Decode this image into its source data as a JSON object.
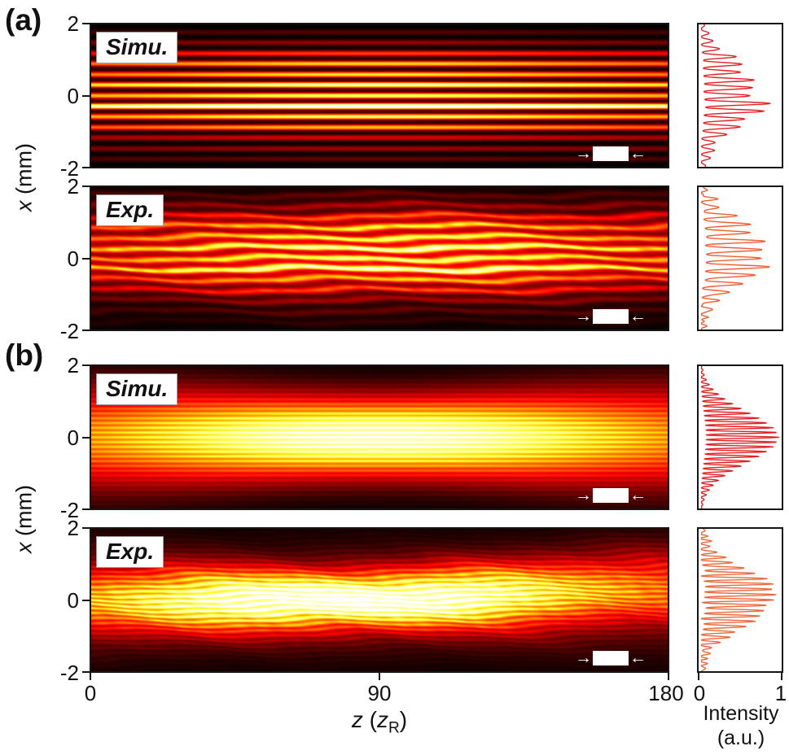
{
  "labels": {
    "panel_a": "(a)",
    "panel_b": "(b)"
  },
  "axes": {
    "y_var": "x",
    "y_unit": " (mm)",
    "y_ticks": [
      "2",
      "0",
      "-2"
    ],
    "x_ticks": [
      "0",
      "90",
      "180"
    ],
    "z_var": "z",
    "z_open": " (",
    "z_sub_var": "z",
    "z_sub": "R",
    "z_close": ")",
    "int_ticks": [
      "0",
      "1"
    ],
    "intensity_line1": "Intensity",
    "intensity_line2": "(a.u.)"
  },
  "decor": {
    "arrow_right": "→",
    "arrow_left": "←"
  },
  "colors": {
    "axis": "#151515",
    "background": "#ffffff"
  },
  "chart_data": [
    {
      "id": "a-simu",
      "type": "heatmap",
      "tag": "Simu.",
      "model": "modes",
      "x_range": [
        0,
        180
      ],
      "y_range": [
        -2,
        2
      ],
      "intensity_range": [
        0,
        1
      ],
      "colormap": "hot",
      "xlabel": "z (zR)",
      "ylabel": "x (mm)",
      "fringe_period_mm": 0.3,
      "fringe_contrast": 0.9,
      "envelope_center_mm": 0.0,
      "envelope_width_mm": 1.25,
      "z_center": 90,
      "z_width": 75,
      "z_base": 0.7,
      "mod_strength": 0.45,
      "brightness": 1.3,
      "wavy": 0,
      "noise": 0,
      "profile_period_mm": 0.22,
      "profile_color": "#e02225"
    },
    {
      "id": "a-exp",
      "type": "heatmap",
      "tag": "Exp.",
      "model": "modes",
      "x_range": [
        0,
        180
      ],
      "y_range": [
        -2,
        2
      ],
      "intensity_range": [
        0,
        1
      ],
      "colormap": "hot",
      "xlabel": "z (zR)",
      "ylabel": "x (mm)",
      "fringe_period_mm": 0.3,
      "fringe_contrast": 0.62,
      "envelope_center_mm": 0.15,
      "envelope_width_mm": 1.2,
      "z_center": 95,
      "z_width": 80,
      "z_base": 0.55,
      "mod_strength": 0.3,
      "brightness": 1.15,
      "wavy": 1,
      "noise": 0.06,
      "profile_period_mm": 0.24,
      "profile_color": "#ec5f35"
    },
    {
      "id": "b-simu",
      "type": "heatmap",
      "tag": "Simu.",
      "model": "gauss",
      "x_range": [
        0,
        180
      ],
      "y_range": [
        -2,
        2
      ],
      "intensity_range": [
        0,
        1
      ],
      "colormap": "hot",
      "xlabel": "z (zR)",
      "ylabel": "x (mm)",
      "fringe_period_mm": 0.135,
      "fringe_contrast": 0.24,
      "envelope_center_mm": 0.0,
      "envelope_width_mm": 1.05,
      "z_center": 90,
      "z_width": 80,
      "z_base": 0.42,
      "width_grow": 0.45,
      "tilt": 0,
      "halo": 0,
      "brightness": 1.12,
      "wavy": 0,
      "noise": 0,
      "profile_period_mm": 0.135,
      "profile_color": "#e02225"
    },
    {
      "id": "b-exp",
      "type": "heatmap",
      "tag": "Exp.",
      "model": "gauss",
      "x_range": [
        0,
        180
      ],
      "y_range": [
        -2,
        2
      ],
      "intensity_range": [
        0,
        1
      ],
      "colormap": "hot",
      "xlabel": "z (zR)",
      "ylabel": "x (mm)",
      "fringe_period_mm": 0.14,
      "fringe_contrast": 0.32,
      "envelope_center_mm": 0.0,
      "envelope_width_mm": 0.78,
      "z_center": 80,
      "z_width": 75,
      "z_base": 0.28,
      "width_grow": 0.35,
      "tilt": 0.3,
      "halo": 0.12,
      "brightness": 1.18,
      "wavy": 1,
      "noise": 0.05,
      "profile_period_mm": 0.15,
      "profile_color": "#e96a3c",
      "profile_env": "bumps"
    }
  ]
}
